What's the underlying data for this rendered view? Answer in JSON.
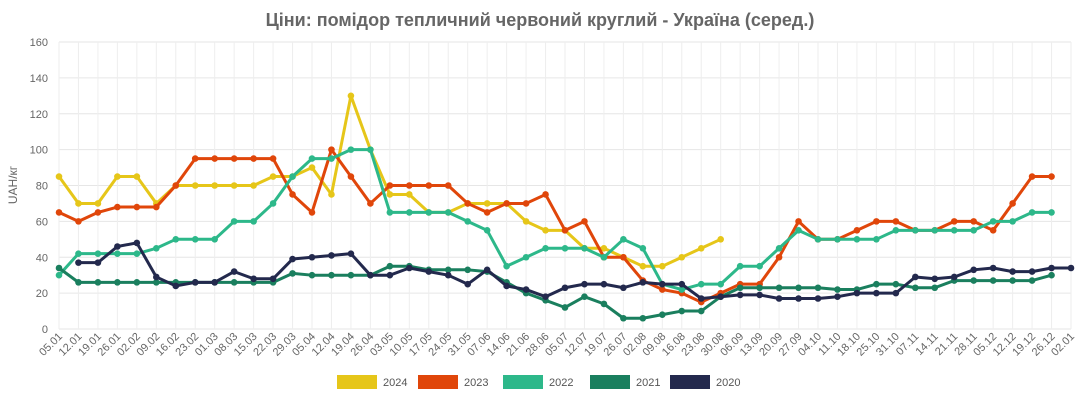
{
  "chart_data": {
    "type": "line",
    "title": "Ціни: помідор тепличний червоний круглий - Україна (серед.)",
    "xlabel": "",
    "ylabel": "UAH/кг",
    "ylim": [
      0,
      160
    ],
    "yticks": [
      0,
      20,
      40,
      60,
      80,
      100,
      120,
      140,
      160
    ],
    "grid": true,
    "legend_position": "bottom",
    "categories": [
      "05.01",
      "12.01",
      "19.01",
      "26.01",
      "02.02",
      "09.02",
      "16.02",
      "23.02",
      "01.03",
      "08.03",
      "15.03",
      "22.03",
      "29.03",
      "05.04",
      "12.04",
      "19.04",
      "26.04",
      "03.05",
      "10.05",
      "17.05",
      "24.05",
      "31.05",
      "07.06",
      "14.06",
      "21.06",
      "28.06",
      "05.07",
      "12.07",
      "19.07",
      "26.07",
      "02.08",
      "09.08",
      "16.08",
      "23.08",
      "30.08",
      "06.09",
      "13.09",
      "20.09",
      "27.09",
      "04.10",
      "11.10",
      "18.10",
      "25.10",
      "31.10",
      "07.11",
      "14.11",
      "21.11",
      "28.11",
      "05.12",
      "12.12",
      "19.12",
      "26.12",
      "02.01"
    ],
    "series": [
      {
        "name": "2024",
        "color": "#e6c619",
        "values": [
          85,
          70,
          70,
          85,
          85,
          70,
          80,
          80,
          80,
          80,
          80,
          85,
          85,
          90,
          75,
          130,
          100,
          75,
          75,
          65,
          65,
          70,
          70,
          70,
          60,
          55,
          55,
          45,
          45,
          40,
          35,
          35,
          40,
          45,
          50,
          null,
          null,
          null,
          null,
          null,
          null,
          null,
          null,
          null,
          null,
          null,
          null,
          null,
          null,
          null,
          null,
          null,
          null
        ]
      },
      {
        "name": "2023",
        "color": "#e0460a",
        "values": [
          65,
          60,
          65,
          68,
          68,
          68,
          80,
          95,
          95,
          95,
          95,
          95,
          75,
          65,
          100,
          85,
          70,
          80,
          80,
          80,
          80,
          70,
          65,
          70,
          70,
          75,
          55,
          60,
          40,
          40,
          27,
          22,
          20,
          15,
          20,
          25,
          25,
          40,
          60,
          50,
          50,
          55,
          60,
          60,
          55,
          55,
          60,
          60,
          55,
          70,
          85,
          85,
          null
        ]
      },
      {
        "name": "2022",
        "color": "#2db88a",
        "values": [
          30,
          42,
          42,
          42,
          42,
          45,
          50,
          50,
          50,
          60,
          60,
          70,
          85,
          95,
          95,
          100,
          100,
          65,
          65,
          65,
          65,
          60,
          55,
          35,
          40,
          45,
          45,
          45,
          40,
          50,
          45,
          25,
          22,
          25,
          25,
          35,
          35,
          45,
          55,
          50,
          50,
          50,
          50,
          55,
          55,
          55,
          55,
          55,
          60,
          60,
          65,
          65,
          null
        ]
      },
      {
        "name": "2021",
        "color": "#1a7f5e",
        "values": [
          34,
          26,
          26,
          26,
          26,
          26,
          26,
          26,
          26,
          26,
          26,
          26,
          31,
          30,
          30,
          30,
          30,
          35,
          35,
          33,
          33,
          33,
          32,
          26,
          20,
          16,
          12,
          18,
          14,
          6,
          6,
          8,
          10,
          10,
          18,
          23,
          23,
          23,
          23,
          23,
          22,
          22,
          25,
          25,
          23,
          23,
          27,
          27,
          27,
          27,
          27,
          30,
          null
        ]
      },
      {
        "name": "2020",
        "color": "#23294d",
        "values": [
          null,
          37,
          37,
          46,
          48,
          29,
          24,
          26,
          26,
          32,
          28,
          28,
          39,
          40,
          41,
          42,
          30,
          30,
          34,
          32,
          30,
          25,
          33,
          24,
          22,
          18,
          23,
          25,
          25,
          23,
          26,
          25,
          25,
          17,
          18,
          19,
          19,
          17,
          17,
          17,
          18,
          20,
          20,
          20,
          29,
          28,
          29,
          33,
          34,
          32,
          32,
          34,
          34
        ]
      }
    ]
  }
}
